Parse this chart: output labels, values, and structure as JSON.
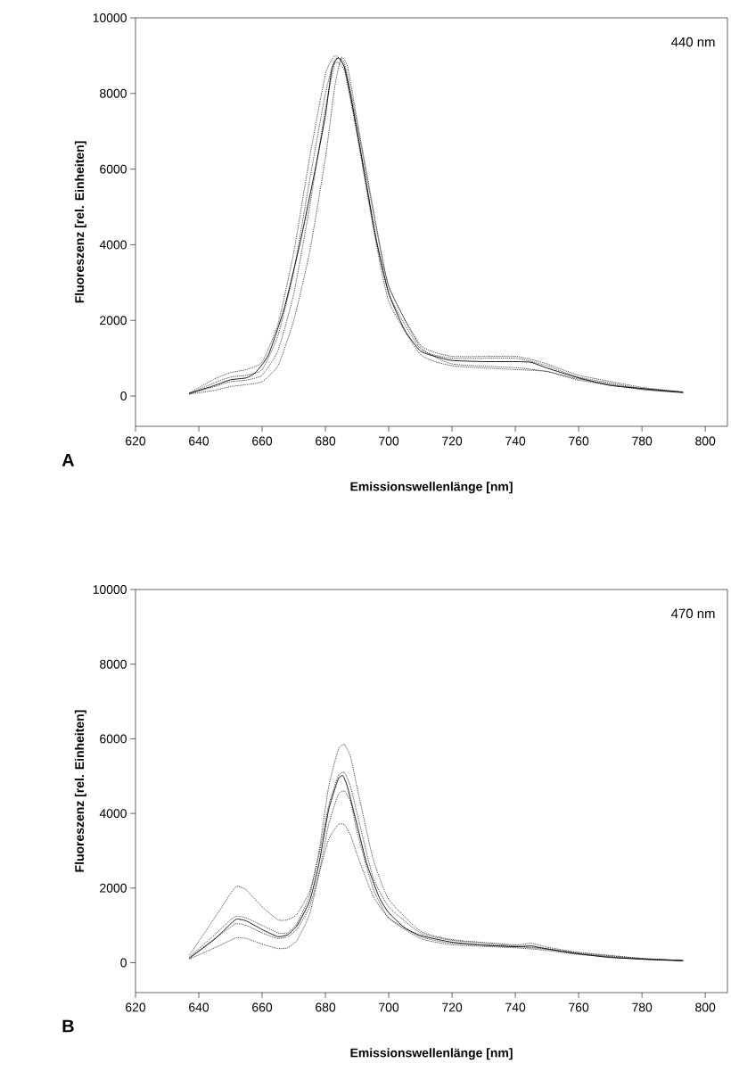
{
  "chart_data": [
    {
      "type": "line",
      "xlabel": "Emissionswellenlänge [nm]",
      "ylabel": "Fluoreszenz [rel. Einheiten]",
      "annotations": [
        "440 nm",
        "A"
      ],
      "xlim": [
        620,
        807
      ],
      "ylim": [
        -800,
        10000
      ],
      "xticks": [
        620,
        640,
        660,
        680,
        700,
        720,
        740,
        760,
        780,
        800
      ],
      "yticks": [
        0,
        2000,
        4000,
        6000,
        8000,
        10000
      ],
      "series": [
        {
          "color": "#000000",
          "line_style": "dotted",
          "x": [
            637,
            645,
            650,
            655,
            660,
            665,
            670,
            675,
            680,
            683,
            686,
            690,
            695,
            700,
            710,
            720,
            740,
            750,
            760,
            780,
            793
          ],
          "values": [
            80,
            450,
            620,
            700,
            900,
            1900,
            3800,
            6300,
            8500,
            9000,
            8700,
            7000,
            4600,
            2700,
            1250,
            1000,
            1000,
            800,
            500,
            200,
            100
          ]
        },
        {
          "color": "#000000",
          "line_style": "dotted",
          "x": [
            637,
            645,
            650,
            655,
            660,
            665,
            670,
            675,
            680,
            683,
            685,
            687,
            690,
            695,
            700,
            710,
            720,
            740,
            750,
            760,
            780,
            793
          ],
          "values": [
            50,
            150,
            250,
            300,
            380,
            800,
            2000,
            3800,
            6300,
            8200,
            8950,
            8700,
            7300,
            5000,
            2900,
            1300,
            850,
            750,
            650,
            450,
            180,
            90
          ]
        },
        {
          "color": "#000000",
          "line_style": "dotted",
          "x": [
            637,
            645,
            650,
            655,
            660,
            665,
            670,
            675,
            680,
            683,
            686,
            690,
            695,
            700,
            710,
            720,
            740,
            750,
            760,
            780,
            793
          ],
          "values": [
            70,
            350,
            500,
            550,
            700,
            1600,
            3300,
            5700,
            8000,
            8900,
            8800,
            7200,
            4900,
            2900,
            1350,
            1050,
            1050,
            850,
            550,
            230,
            110
          ]
        },
        {
          "color": "#000000",
          "line_style": "dotted",
          "x": [
            637,
            645,
            650,
            655,
            660,
            665,
            670,
            675,
            680,
            683,
            686,
            690,
            695,
            700,
            710,
            720,
            740,
            750,
            760,
            780,
            793
          ],
          "values": [
            60,
            250,
            380,
            420,
            550,
            1200,
            2700,
            5000,
            7600,
            8800,
            8600,
            6900,
            4500,
            2500,
            1100,
            800,
            700,
            650,
            420,
            170,
            90
          ]
        },
        {
          "color": "#000000",
          "line_style": "solid",
          "x": [
            637,
            645,
            650,
            655,
            658,
            662,
            667,
            672,
            677,
            680,
            682,
            684,
            686,
            688,
            690,
            693,
            696,
            700,
            705,
            710,
            715,
            720,
            730,
            740,
            745,
            750,
            760,
            770,
            780,
            793
          ],
          "values": [
            70,
            280,
            430,
            480,
            630,
            1090,
            2320,
            4050,
            6090,
            7420,
            8640,
            8950,
            8690,
            7930,
            7010,
            5580,
            4150,
            2720,
            1750,
            1190,
            1040,
            940,
            910,
            910,
            890,
            740,
            480,
            280,
            200,
            100
          ]
        }
      ]
    },
    {
      "type": "line",
      "xlabel": "Emissionswellenlänge [nm]",
      "ylabel": "Fluoreszenz [rel. Einheiten]",
      "annotations": [
        "470 nm",
        "B"
      ],
      "xlim": [
        620,
        807
      ],
      "ylim": [
        -800,
        10000
      ],
      "xticks": [
        620,
        640,
        660,
        680,
        700,
        720,
        740,
        760,
        780,
        800
      ],
      "yticks": [
        0,
        2000,
        4000,
        6000,
        8000,
        10000
      ],
      "series": [
        {
          "color": "#000000",
          "line_style": "dotted",
          "x": [
            637,
            645,
            650,
            652,
            655,
            660,
            665,
            668,
            671,
            675,
            678,
            681,
            684,
            686,
            688,
            690,
            695,
            700,
            710,
            720,
            740,
            750,
            760,
            780,
            793
          ],
          "values": [
            200,
            1200,
            1850,
            2050,
            1950,
            1500,
            1150,
            1150,
            1300,
            1900,
            2900,
            4200,
            5000,
            5100,
            4700,
            4000,
            2300,
            1500,
            800,
            600,
            450,
            380,
            260,
            110,
            60
          ]
        },
        {
          "color": "#000000",
          "line_style": "dotted",
          "x": [
            637,
            645,
            650,
            652,
            655,
            660,
            665,
            668,
            671,
            675,
            678,
            681,
            684,
            686,
            688,
            690,
            695,
            700,
            710,
            720,
            740,
            745,
            750,
            760,
            780,
            793
          ],
          "values": [
            150,
            750,
            1150,
            1250,
            1200,
            1000,
            800,
            800,
            1050,
            1800,
            3000,
            4700,
            5700,
            5850,
            5500,
            4700,
            2800,
            1700,
            850,
            620,
            480,
            520,
            420,
            280,
            120,
            60
          ]
        },
        {
          "color": "#000000",
          "line_style": "dotted",
          "x": [
            637,
            645,
            650,
            652,
            655,
            660,
            665,
            668,
            671,
            675,
            678,
            681,
            684,
            686,
            688,
            690,
            695,
            700,
            710,
            720,
            740,
            750,
            760,
            780,
            793
          ],
          "values": [
            100,
            400,
            600,
            670,
            650,
            500,
            380,
            400,
            600,
            1300,
            2400,
            3700,
            4500,
            4600,
            4300,
            3500,
            2000,
            1200,
            650,
            480,
            400,
            330,
            220,
            90,
            50
          ]
        },
        {
          "color": "#000000",
          "line_style": "dotted",
          "x": [
            637,
            645,
            650,
            652,
            655,
            660,
            665,
            668,
            671,
            675,
            678,
            681,
            684,
            686,
            688,
            690,
            695,
            700,
            710,
            720,
            740,
            750,
            760,
            780,
            793
          ],
          "values": [
            120,
            650,
            950,
            1050,
            1000,
            800,
            650,
            700,
            900,
            1500,
            2400,
            3300,
            3700,
            3700,
            3400,
            2900,
            1800,
            1200,
            700,
            520,
            430,
            360,
            240,
            100,
            50
          ]
        },
        {
          "color": "#000000",
          "line_style": "solid",
          "x": [
            637,
            645,
            650,
            652,
            655,
            660,
            665,
            668,
            671,
            675,
            678,
            681,
            684,
            685.5,
            687,
            690,
            693,
            697,
            700,
            705,
            710,
            720,
            730,
            740,
            745,
            750,
            760,
            770,
            780,
            793
          ],
          "values": [
            120,
            630,
            1040,
            1170,
            1120,
            890,
            700,
            750,
            990,
            1650,
            2670,
            4090,
            4910,
            5010,
            4700,
            3690,
            2670,
            1750,
            1340,
            940,
            730,
            550,
            470,
            430,
            450,
            370,
            240,
            140,
            100,
            60
          ]
        }
      ]
    }
  ]
}
